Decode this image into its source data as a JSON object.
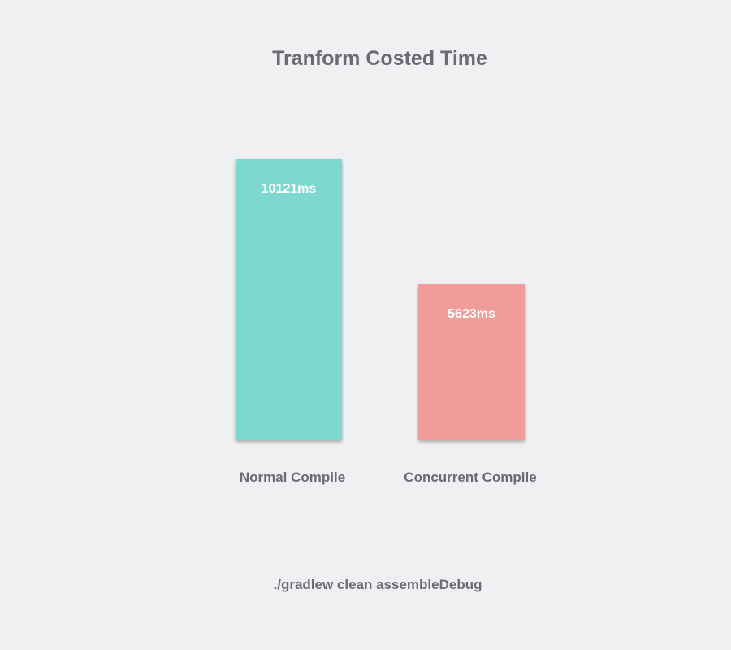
{
  "chart_data": {
    "type": "bar",
    "title": "Tranform Costed Time",
    "subtitle": "./gradlew clean assembleDebug",
    "categories": [
      "Normal Compile",
      "Concurrent Compile"
    ],
    "values": [
      10121,
      5623
    ],
    "value_labels": [
      "10121ms",
      "5623ms"
    ],
    "unit": "ms",
    "colors": [
      "#7dd9cf",
      "#f09c98"
    ],
    "ylim": [
      0,
      10121
    ],
    "grid": false,
    "legend": "none"
  }
}
